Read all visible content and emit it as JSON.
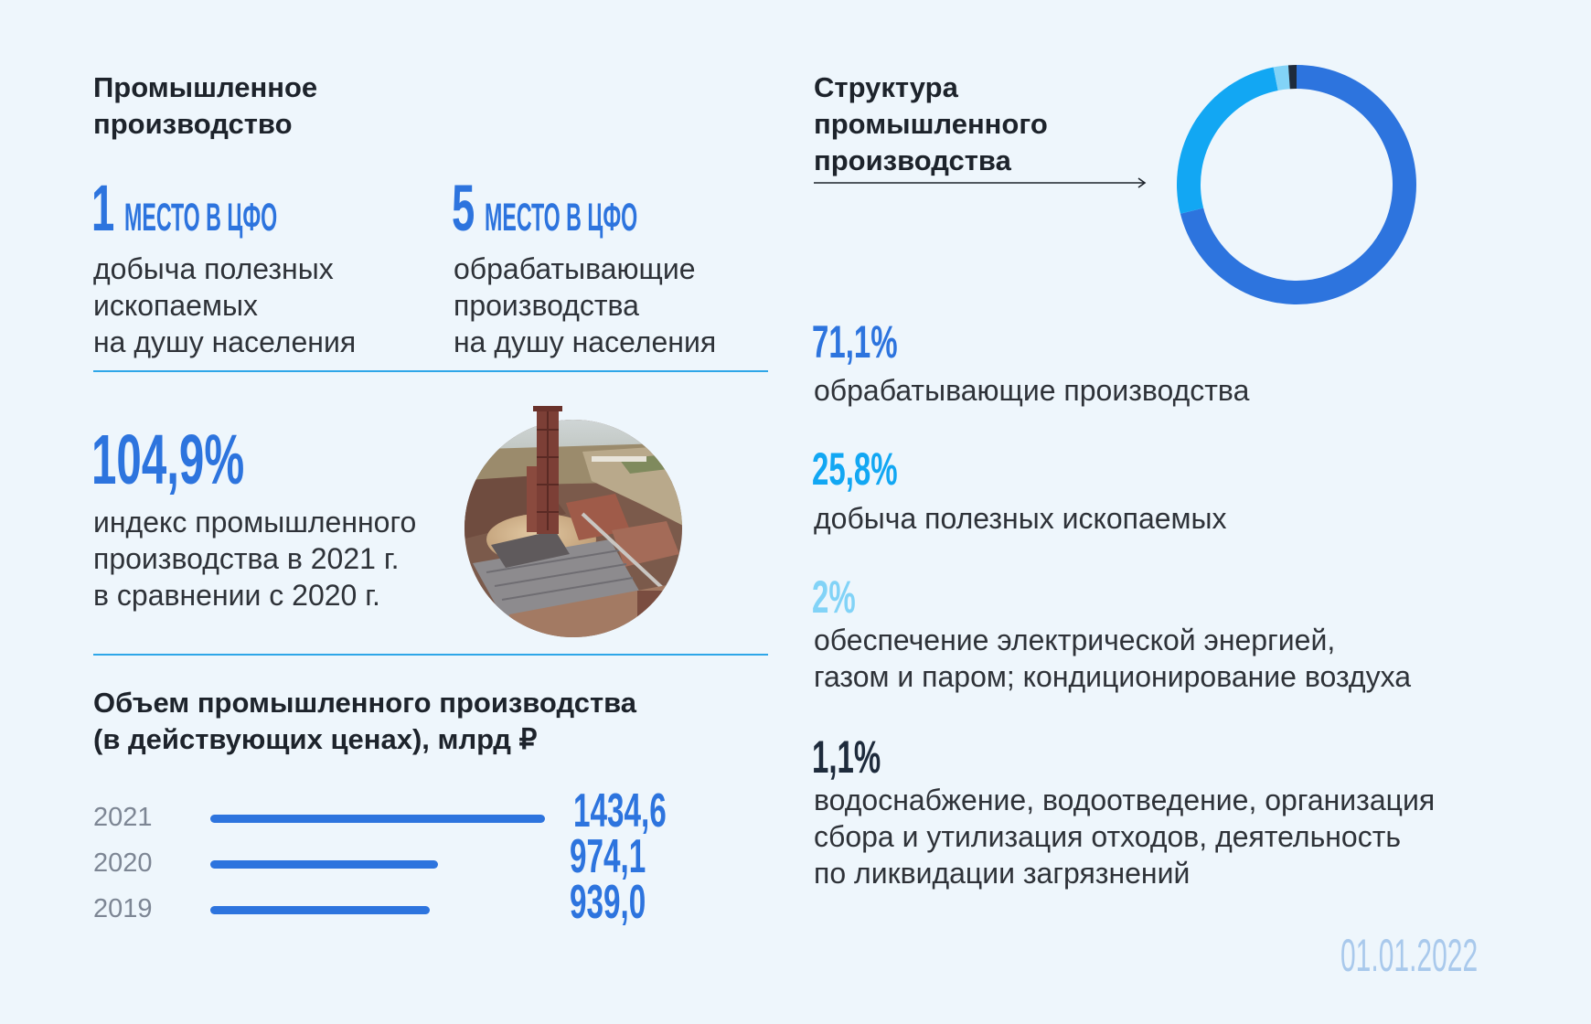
{
  "colors": {
    "background": "#eef6fc",
    "text": "#2e3238",
    "heading": "#1d232b",
    "accent_blue": "#2d74de",
    "divider": "#2ea6e8",
    "year_label": "#7d8694",
    "date": "#a9c9ec"
  },
  "left": {
    "title": "Промышленное\nпроизводство",
    "rankings": [
      {
        "number": "1",
        "unit": "МЕСТО В ЦФО",
        "description": "добыча полезных\nископаемых\nна душу населения"
      },
      {
        "number": "5",
        "unit": "МЕСТО В ЦФО",
        "description": "обрабатывающие\nпроизводства\nна душу населения"
      }
    ],
    "index": {
      "value": "104,9%",
      "description": "индекс промышленного\nпроизводства в 2021 г.\nв сравнении с 2020 г."
    },
    "photo": {
      "icon": "factory-photo"
    }
  },
  "right": {
    "date": "01.01.2022"
  },
  "chart_data": [
    {
      "type": "pie",
      "title": "Структура\nпромышленного\nпроизводства",
      "labels": [
        "обрабатывающие производства",
        "добыча полезных ископаемых",
        "обеспечение электрической энергией,\nгазом и паром; кондиционирование воздуха",
        "водоснабжение, водоотведение, организация\nсбора и утилизация отходов, деятельность\nпо ликвидации загрязнений"
      ],
      "values": [
        71.1,
        25.8,
        2,
        1.1
      ],
      "value_labels": [
        "71,1%",
        "25,8%",
        "2%",
        "1,1%"
      ],
      "colors": [
        "#2d74de",
        "#12a7f3",
        "#82d3f7",
        "#1e2b3c"
      ]
    },
    {
      "type": "bar",
      "title": "Объем промышленного производства\n(в действующих ценах), млрд ₽",
      "categories": [
        "2021",
        "2020",
        "2019"
      ],
      "values": [
        1434.6,
        974.1,
        939.0
      ],
      "value_labels": [
        "1434,6",
        "974,1",
        "939,0"
      ],
      "color": "#2d74de",
      "xlim": [
        0,
        1434.6
      ]
    }
  ]
}
